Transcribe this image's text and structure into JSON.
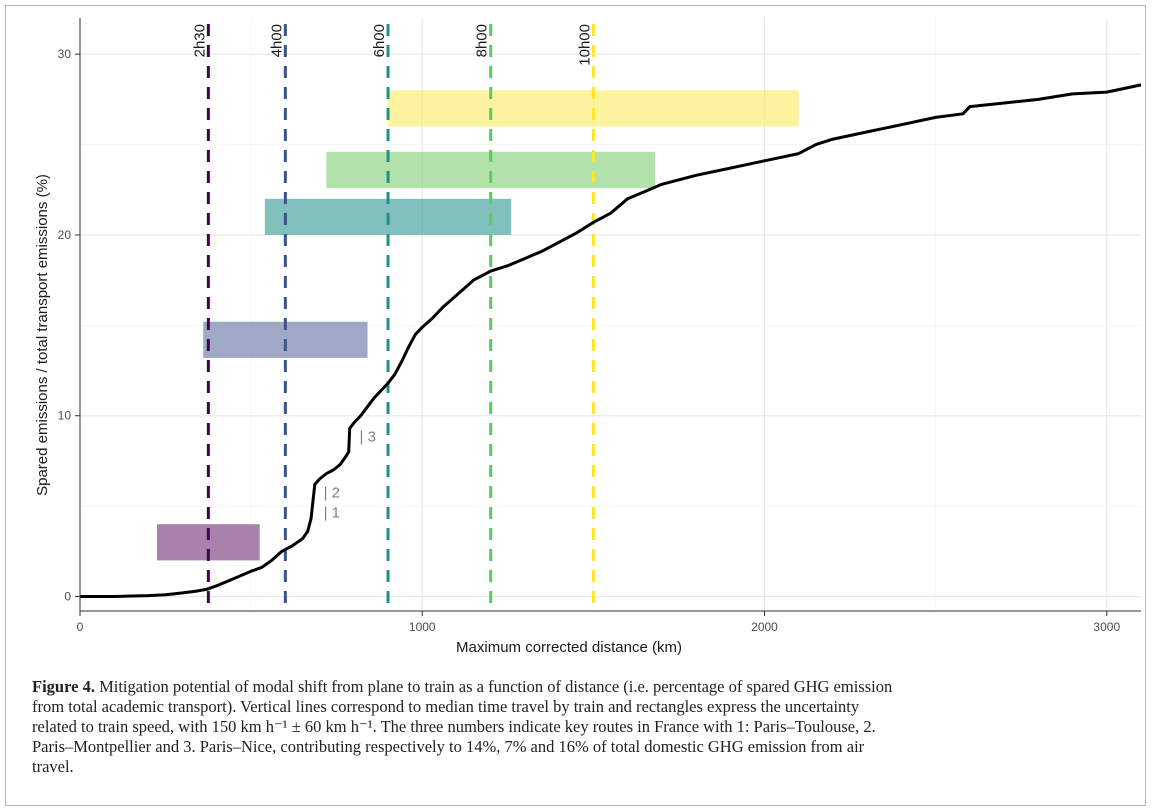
{
  "chart_data": {
    "type": "line",
    "xlabel": "Maximum corrected distance (km)",
    "ylabel": "Spared emissions / total transport emissions (%)",
    "xlim": [
      0,
      3100
    ],
    "ylim": [
      -0.8,
      32
    ],
    "x_ticks": [
      0,
      1000,
      2000,
      3000
    ],
    "y_ticks": [
      0,
      10,
      20,
      30
    ],
    "grid": true,
    "series": [
      {
        "color": "#000000",
        "points": [
          [
            0,
            0
          ],
          [
            100,
            0
          ],
          [
            200,
            0.05
          ],
          [
            250,
            0.1
          ],
          [
            300,
            0.2
          ],
          [
            340,
            0.3
          ],
          [
            370,
            0.4
          ],
          [
            400,
            0.6
          ],
          [
            450,
            1.0
          ],
          [
            500,
            1.4
          ],
          [
            530,
            1.6
          ],
          [
            560,
            2.0
          ],
          [
            590,
            2.5
          ],
          [
            620,
            2.8
          ],
          [
            650,
            3.2
          ],
          [
            665,
            3.6
          ],
          [
            675,
            4.3
          ],
          [
            682,
            5.5
          ],
          [
            686,
            6.2
          ],
          [
            700,
            6.5
          ],
          [
            720,
            6.8
          ],
          [
            740,
            7.0
          ],
          [
            760,
            7.3
          ],
          [
            775,
            7.7
          ],
          [
            785,
            8.0
          ],
          [
            788,
            9.3
          ],
          [
            800,
            9.6
          ],
          [
            820,
            10.0
          ],
          [
            840,
            10.5
          ],
          [
            860,
            11.0
          ],
          [
            880,
            11.4
          ],
          [
            900,
            11.8
          ],
          [
            920,
            12.3
          ],
          [
            940,
            13.0
          ],
          [
            960,
            13.8
          ],
          [
            980,
            14.5
          ],
          [
            1000,
            14.9
          ],
          [
            1030,
            15.4
          ],
          [
            1060,
            16.0
          ],
          [
            1090,
            16.5
          ],
          [
            1120,
            17.0
          ],
          [
            1150,
            17.5
          ],
          [
            1180,
            17.8
          ],
          [
            1200,
            18.0
          ],
          [
            1250,
            18.3
          ],
          [
            1300,
            18.7
          ],
          [
            1350,
            19.1
          ],
          [
            1400,
            19.6
          ],
          [
            1450,
            20.1
          ],
          [
            1500,
            20.7
          ],
          [
            1550,
            21.2
          ],
          [
            1600,
            22.0
          ],
          [
            1650,
            22.4
          ],
          [
            1700,
            22.8
          ],
          [
            1800,
            23.3
          ],
          [
            1900,
            23.7
          ],
          [
            2000,
            24.1
          ],
          [
            2100,
            24.5
          ],
          [
            2150,
            25.0
          ],
          [
            2200,
            25.3
          ],
          [
            2300,
            25.7
          ],
          [
            2400,
            26.1
          ],
          [
            2500,
            26.5
          ],
          [
            2580,
            26.7
          ],
          [
            2600,
            27.1
          ],
          [
            2700,
            27.3
          ],
          [
            2800,
            27.5
          ],
          [
            2900,
            27.8
          ],
          [
            3000,
            27.9
          ],
          [
            3100,
            28.3
          ]
        ]
      }
    ],
    "vlines": [
      {
        "x": 375,
        "label": "2h30",
        "color": "#440154"
      },
      {
        "x": 600,
        "label": "4h00",
        "color": "#3b528b"
      },
      {
        "x": 900,
        "label": "6h00",
        "color": "#21908d"
      },
      {
        "x": 1200,
        "label": "8h00",
        "color": "#5dc963"
      },
      {
        "x": 1500,
        "label": "10h00",
        "color": "#fde725"
      }
    ],
    "rects": [
      {
        "x0": 225,
        "x1": 525,
        "y0": 2.0,
        "y1": 4.0,
        "color": "#7a3d80"
      },
      {
        "x0": 360,
        "x1": 840,
        "y0": 13.2,
        "y1": 15.2,
        "color": "#6c7aa6"
      },
      {
        "x0": 540,
        "x1": 1260,
        "y0": 20.0,
        "y1": 22.0,
        "color": "#3f9e9b"
      },
      {
        "x0": 720,
        "x1": 1680,
        "y0": 22.6,
        "y1": 24.6,
        "color": "#86d27c"
      },
      {
        "x0": 900,
        "x1": 2100,
        "y0": 26.0,
        "y1": 28.0,
        "color": "#fcec6b"
      }
    ],
    "route_labels": [
      {
        "x": 700,
        "y": 4.7,
        "label": "1"
      },
      {
        "x": 700,
        "y": 5.8,
        "label": "2"
      },
      {
        "x": 805,
        "y": 8.9,
        "label": "3"
      }
    ]
  },
  "caption": {
    "figure_label": "Figure 4.",
    "lines": [
      " Mitigation potential of modal shift from plane to train as a function of distance (i.e. percentage of spared GHG emission",
      "from total academic transport). Vertical lines correspond to median time travel by train and rectangles express the uncertainty",
      "related to train speed, with 150 km h⁻¹ ± 60 km h⁻¹. The three numbers indicate key routes in France with 1: Paris–Toulouse, 2.",
      "Paris–Montpellier and 3. Paris–Nice, contributing respectively to 14%, 7% and 16% of total domestic GHG emission from air",
      "travel."
    ]
  }
}
